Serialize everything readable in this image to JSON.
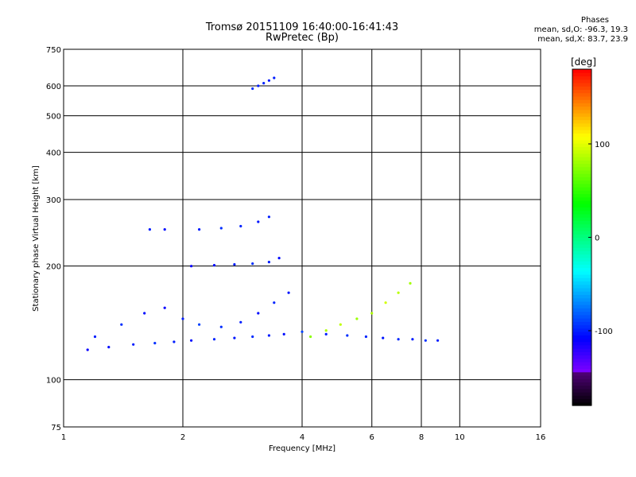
{
  "chart_data": {
    "type": "scatter",
    "title": "Tromsø 20151109 16:40:00-16:41:43",
    "subtitle": "RwPretec (Bp)",
    "xlabel": "Frequency [MHz]",
    "ylabel": "Stationary phase Virtual Height [km]",
    "x_scale": "log",
    "y_scale": "log",
    "xlim": [
      1,
      16
    ],
    "ylim": [
      75,
      750
    ],
    "x_ticks": [
      "1",
      "2",
      "4",
      "6",
      "8",
      "10",
      "16"
    ],
    "y_ticks": [
      "75",
      "100",
      "200",
      "300",
      "400",
      "500",
      "600",
      "750"
    ],
    "grid": true,
    "colorbar": {
      "label": "[deg]",
      "range": [
        -180,
        180
      ],
      "ticks": [
        "100",
        "0",
        "-100"
      ],
      "tick_values": [
        100,
        0,
        -100
      ]
    },
    "phase_stats": {
      "heading": "Phases",
      "line_o": "mean, sd,O: -96.3, 19.3",
      "line_x": "mean, sd,X: 83.7, 23.9"
    },
    "series": [
      {
        "x": [
          1.15,
          1.3,
          1.5,
          1.7,
          1.9,
          2.1,
          2.4,
          2.7,
          3.0,
          3.3,
          3.6,
          4.0,
          4.6,
          5.2,
          5.8,
          6.4,
          7.0,
          7.6,
          8.2,
          8.8
        ],
        "y": [
          120,
          122,
          124,
          125,
          126,
          127,
          128,
          129,
          130,
          131,
          132,
          134,
          132,
          131,
          130,
          129,
          128,
          128,
          127,
          127
        ],
        "phase": [
          -110,
          -105,
          -100,
          -95,
          -100,
          -105,
          -98,
          -102,
          -96,
          -100,
          -104,
          -90,
          -100,
          -95,
          -98,
          -102,
          -97,
          -100,
          -95,
          -100
        ]
      },
      {
        "x": [
          1.2,
          1.4,
          1.6,
          1.8,
          2.0,
          2.2,
          2.5,
          2.8,
          3.1,
          3.4,
          3.7
        ],
        "y": [
          130,
          140,
          150,
          155,
          145,
          140,
          138,
          142,
          150,
          160,
          170
        ],
        "phase": [
          -100,
          -95,
          -105,
          -110,
          -100,
          -90,
          -95,
          -100,
          -105,
          -98,
          -102
        ]
      },
      {
        "x": [
          1.65,
          1.8,
          2.2,
          2.5,
          2.8,
          3.1,
          3.3
        ],
        "y": [
          250,
          250,
          250,
          252,
          255,
          262,
          270
        ],
        "phase": [
          -100,
          -105,
          -100,
          -95,
          -98,
          -102,
          -100
        ]
      },
      {
        "x": [
          2.1,
          2.4,
          2.7,
          3.0,
          3.3,
          3.5
        ],
        "y": [
          200,
          201,
          202,
          203,
          205,
          210
        ],
        "phase": [
          -110,
          -105,
          -100,
          -95,
          -100,
          -105
        ]
      },
      {
        "x": [
          3.0,
          3.1,
          3.2,
          3.3,
          3.4
        ],
        "y": [
          590,
          600,
          610,
          620,
          630
        ],
        "phase": [
          -95,
          -100,
          -98,
          -102,
          -100
        ]
      },
      {
        "x": [
          4.2,
          4.6,
          5.0,
          5.5,
          6.0,
          6.5,
          7.0,
          7.5
        ],
        "y": [
          130,
          135,
          140,
          145,
          150,
          160,
          170,
          180
        ],
        "phase": [
          75,
          85,
          90,
          80,
          85,
          95,
          88,
          82
        ]
      }
    ]
  }
}
